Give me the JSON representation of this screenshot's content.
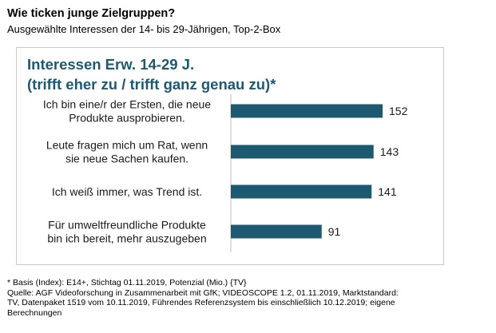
{
  "header": {
    "title": "Wie ticken junge Zielgruppen?",
    "subtitle": "Ausgewählte Interessen der 14- bis 29-Jährigen, Top-2-Box"
  },
  "chart_data": {
    "type": "bar",
    "orientation": "horizontal",
    "title_lines": [
      "Interessen Erw. 14-29 J.",
      "(trifft eher zu / trifft ganz genau zu)*"
    ],
    "categories": [
      [
        "Ich bin eine/r der Ersten, die neue",
        "Produkte ausprobieren."
      ],
      [
        "Leute fragen mich um Rat, wenn",
        "sie neue Sachen kaufen."
      ],
      [
        "Ich weiß immer, was Trend ist."
      ],
      [
        "Für umweltfreundliche Produkte",
        "bin ich bereit, mehr auszugeben"
      ]
    ],
    "values": [
      152,
      143,
      141,
      91
    ],
    "xlim": [
      0,
      160
    ],
    "grid": false,
    "legend": "none",
    "bar_color": "#1d5a72"
  },
  "footnote": {
    "lines": [
      "* Basis (Index): E14+, Stichtag 01.11.2019, Potenzial (Mio.) {TV}",
      "Quelle:  AGF Videoforschung in Zusammenarbeit mit GfK; VIDEOSCOPE 1.2, 01.11.2019, Marktstandard:",
      "TV, Datenpaket 1519 vom 10.11.2019, Führendes Referenzsystem bis einschließlich 10.12.2019; eigene",
      "Berechnungen"
    ]
  }
}
